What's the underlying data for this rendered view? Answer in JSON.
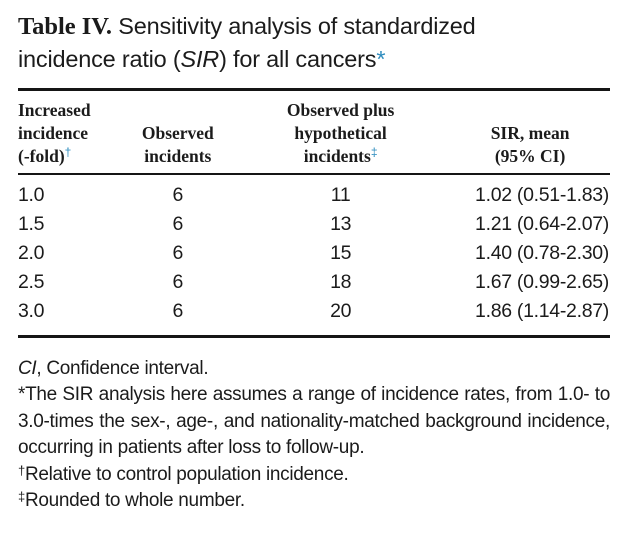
{
  "colors": {
    "accent_blue": "#2d8cbe",
    "text": "#1b1b1b",
    "rule": "#151515"
  },
  "title": {
    "line1": {
      "label": "Table IV.",
      "rest": " Sensitivity analysis of standardized"
    },
    "line2": {
      "pre": "incidence ratio (",
      "sir": "SIR",
      "post": ") for all cancers",
      "mark": "*"
    }
  },
  "table": {
    "columns": [
      {
        "lines": [
          "Increased",
          "incidence",
          "(-fold)"
        ],
        "sup": "†"
      },
      {
        "lines": [
          "Observed",
          "incidents"
        ],
        "sup": ""
      },
      {
        "lines": [
          "Observed plus",
          "hypothetical",
          "incidents"
        ],
        "sup": "‡"
      },
      {
        "lines": [
          "SIR, mean",
          "(95% CI)"
        ],
        "sup": ""
      }
    ],
    "rows": [
      {
        "fold": "1.0",
        "observed": "6",
        "hypothetical": "11",
        "sir": "1.02 (0.51-1.83)"
      },
      {
        "fold": "1.5",
        "observed": "6",
        "hypothetical": "13",
        "sir": "1.21 (0.64-2.07)"
      },
      {
        "fold": "2.0",
        "observed": "6",
        "hypothetical": "15",
        "sir": "1.40 (0.78-2.30)"
      },
      {
        "fold": "2.5",
        "observed": "6",
        "hypothetical": "18",
        "sir": "1.67 (0.99-2.65)"
      },
      {
        "fold": "3.0",
        "observed": "6",
        "hypothetical": "20",
        "sir": "1.86 (1.14-2.87)"
      }
    ]
  },
  "footnotes": {
    "abbrev_italic": "CI",
    "abbrev_rest": ", Confidence interval.",
    "asterisk_note": "*The SIR analysis here assumes a range of incidence rates, from 1.0- to 3.0-times the sex-, age-, and nationality-matched background incidence, occurring in patients after loss to follow-up.",
    "dagger_symbol": "†",
    "dagger_note": "Relative to control population incidence.",
    "double_dagger_symbol": "‡",
    "double_dagger_note": "Rounded to whole number."
  }
}
